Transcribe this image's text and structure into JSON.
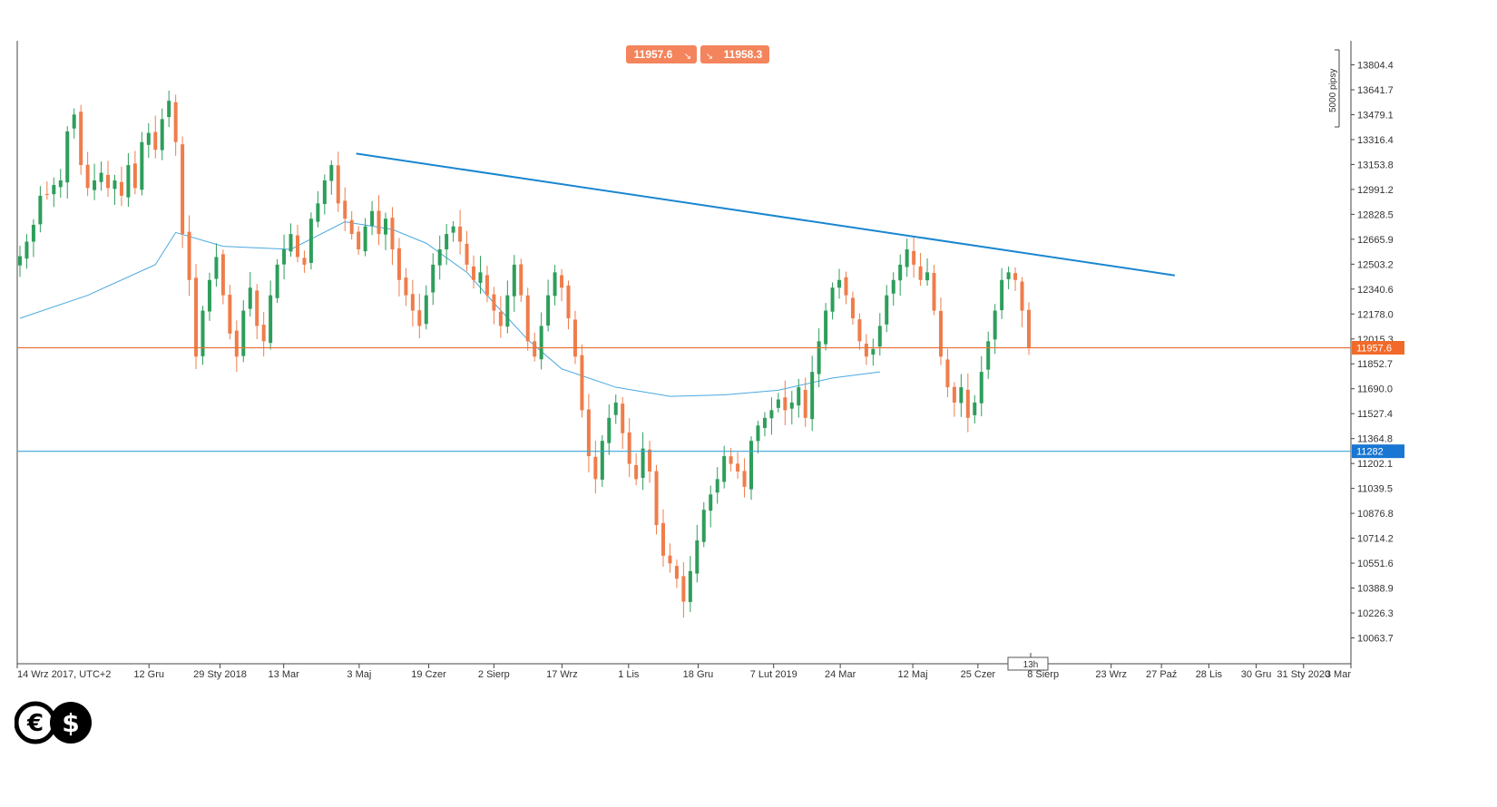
{
  "chart_data": {
    "type": "candlestick",
    "instrument_note": "UTC+2",
    "y_ticks": [
      13804.4,
      13641.7,
      13479.1,
      13316.4,
      13153.8,
      12991.2,
      12828.5,
      12665.9,
      12503.2,
      12340.6,
      12178.0,
      12015.3,
      11852.7,
      11690.0,
      11527.4,
      11364.8,
      11202.1,
      11039.5,
      10876.8,
      10714.2,
      10551.6,
      10388.9,
      10226.3,
      10063.7
    ],
    "x_ticks": [
      "14 Wrz 2017, UTC+2",
      "12 Gru",
      "29 Sty 2018",
      "13 Mar",
      "3 Maj",
      "19 Czer",
      "2 Sierp",
      "17 Wrz",
      "1 Lis",
      "18 Gru",
      "7 Lut 2019",
      "24 Mar",
      "12 Maj",
      "25 Czer",
      "8 Sierp",
      "23 Wrz",
      "27 Paź",
      "28 Lis",
      "30 Gru",
      "31 Sty 2020",
      "3 Mar"
    ],
    "ylim": [
      9900,
      14050
    ],
    "bid": "11957.6",
    "ask": "11958.3",
    "current_price_label": "11957.6",
    "support_level": 11282,
    "support_label": "11282",
    "scale_label": "5000 pipsy",
    "timeframe_label": "13h",
    "trendline": {
      "start": {
        "date": "2018-05-01",
        "value": 13225
      },
      "end": {
        "date": "2019-11-05",
        "value": 12430
      }
    },
    "closes": [
      12555,
      12650,
      12760,
      12950,
      12960,
      13020,
      13050,
      13370,
      13480,
      13150,
      13000,
      13050,
      13100,
      13000,
      13050,
      12950,
      13150,
      13000,
      13300,
      13360,
      13250,
      13450,
      13570,
      13300,
      12700,
      12400,
      11900,
      12200,
      12400,
      12550,
      12300,
      12050,
      11900,
      12200,
      12350,
      12100,
      12000,
      12300,
      12500,
      12600,
      12700,
      12550,
      12500,
      12800,
      12900,
      13050,
      13150,
      12900,
      12800,
      12700,
      12600,
      12750,
      12850,
      12700,
      12800,
      12600,
      12400,
      12300,
      12200,
      12100,
      12300,
      12500,
      12600,
      12700,
      12750,
      12650,
      12500,
      12400,
      12450,
      12300,
      12200,
      12100,
      12300,
      12500,
      12300,
      12000,
      11900,
      12100,
      12300,
      12450,
      12350,
      12150,
      11900,
      11550,
      11250,
      11100,
      11350,
      11500,
      11600,
      11400,
      11200,
      11100,
      11300,
      11150,
      10800,
      10600,
      10550,
      10450,
      10300,
      10500,
      10700,
      10900,
      11000,
      11100,
      11250,
      11200,
      11150,
      11050,
      11350,
      11450,
      11500,
      11550,
      11620,
      11550,
      11600,
      11700,
      11500,
      11800,
      12000,
      12200,
      12350,
      12400,
      12300,
      12150,
      12000,
      11900,
      11950,
      12100,
      12300,
      12400,
      12500,
      12600,
      12500,
      12400,
      12450,
      12200,
      11900,
      11700,
      11600,
      11700,
      11500,
      11600,
      11800,
      12000,
      12200,
      12400,
      12450,
      12400,
      12200,
      11960
    ],
    "ma": [
      {
        "x": 0,
        "v": 12150
      },
      {
        "x": 10,
        "v": 12300
      },
      {
        "x": 20,
        "v": 12500
      },
      {
        "x": 23,
        "v": 12710
      },
      {
        "x": 30,
        "v": 12620
      },
      {
        "x": 40,
        "v": 12600
      },
      {
        "x": 48,
        "v": 12780
      },
      {
        "x": 55,
        "v": 12730
      },
      {
        "x": 60,
        "v": 12640
      },
      {
        "x": 66,
        "v": 12450
      },
      {
        "x": 70,
        "v": 12250
      },
      {
        "x": 75,
        "v": 12010
      },
      {
        "x": 80,
        "v": 11820
      },
      {
        "x": 88,
        "v": 11700
      },
      {
        "x": 96,
        "v": 11640
      },
      {
        "x": 104,
        "v": 11650
      },
      {
        "x": 112,
        "v": 11680
      },
      {
        "x": 120,
        "v": 11760
      },
      {
        "x": 127,
        "v": 11800
      }
    ]
  }
}
